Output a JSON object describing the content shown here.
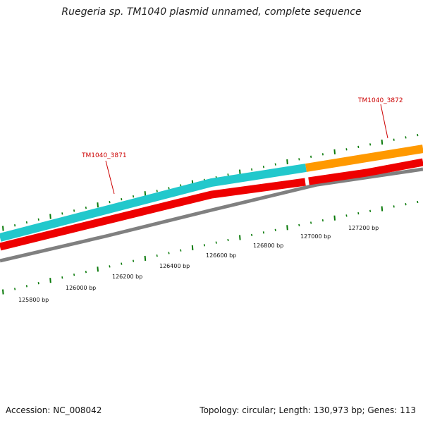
{
  "title": "Ruegeria sp. TM1040 plasmid unnamed, complete sequence",
  "accession": "Accession: NC_008042",
  "summary": "Topology: circular; Length: 130,973 bp; Genes: 113",
  "colors": {
    "cds_forward": "#22c8cc",
    "cds_forward_alt": "#ff9900",
    "gene_reverse": "#ee0000",
    "backbone": "#808080",
    "tick": "#0a7a0a",
    "label": "#cc0000"
  },
  "scale_labels": [
    "125800 bp",
    "126000 bp",
    "126200 bp",
    "126400 bp",
    "126600 bp",
    "126800 bp",
    "127000 bp",
    "127200 bp"
  ],
  "genes": [
    {
      "name": "TM1040_3871",
      "color_key": "cds_forward"
    },
    {
      "name": "TM1040_3872",
      "color_key": "cds_forward_alt"
    }
  ]
}
